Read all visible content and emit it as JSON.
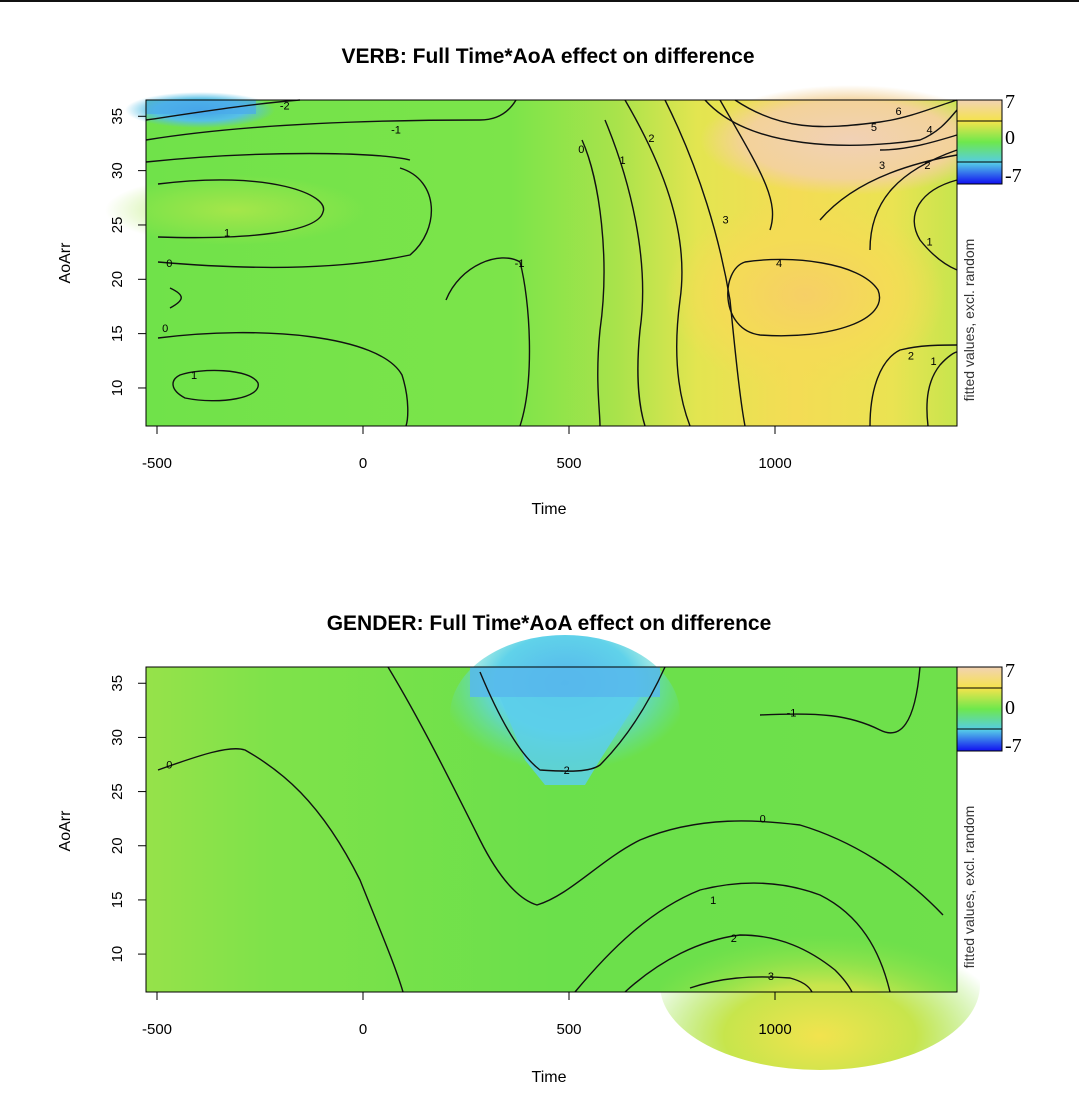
{
  "chart_data": [
    {
      "type": "heatmap",
      "title": "VERB: Full Time*AoA effect on difference",
      "xlabel": "Time",
      "ylabel": "AoArr",
      "zlabel": "fitted values, excl. random",
      "xlim": [
        -520,
        1440
      ],
      "ylim": [
        6.5,
        36.5
      ],
      "xticks": [
        -500,
        0,
        500,
        1000
      ],
      "yticks": [
        10,
        15,
        20,
        25,
        30,
        35
      ],
      "legend_ticks": [
        7,
        0,
        -7
      ],
      "zlim": [
        -7,
        7
      ],
      "grid": false,
      "legend_position": "right",
      "contour_labels": [
        {
          "text": "-2",
          "x": -190,
          "y": 36.0
        },
        {
          "text": "-1",
          "x": 80,
          "y": 33.8
        },
        {
          "text": "1",
          "x": -330,
          "y": 24.3
        },
        {
          "text": "0",
          "x": -470,
          "y": 21.5
        },
        {
          "text": "0",
          "x": -480,
          "y": 15.5
        },
        {
          "text": "1",
          "x": -410,
          "y": 11.2
        },
        {
          "text": "0",
          "x": 530,
          "y": 32.0
        },
        {
          "text": "1",
          "x": 630,
          "y": 31.0
        },
        {
          "text": "2",
          "x": 700,
          "y": 33.0
        },
        {
          "text": "-1",
          "x": 380,
          "y": 21.5
        },
        {
          "text": "3",
          "x": 880,
          "y": 25.5
        },
        {
          "text": "4",
          "x": 1010,
          "y": 21.5
        },
        {
          "text": "6",
          "x": 1300,
          "y": 35.5
        },
        {
          "text": "5",
          "x": 1240,
          "y": 34.0
        },
        {
          "text": "4",
          "x": 1375,
          "y": 33.8
        },
        {
          "text": "3",
          "x": 1260,
          "y": 30.5
        },
        {
          "text": "2",
          "x": 1370,
          "y": 30.5
        },
        {
          "text": "1",
          "x": 1375,
          "y": 23.5
        },
        {
          "text": "2",
          "x": 1330,
          "y": 13.0
        },
        {
          "text": "1",
          "x": 1385,
          "y": 12.5
        }
      ]
    },
    {
      "type": "heatmap",
      "title": "GENDER: Full Time*AoA effect on difference",
      "xlabel": "Time",
      "ylabel": "AoArr",
      "zlabel": "fitted values, excl. random",
      "xlim": [
        -520,
        1440
      ],
      "ylim": [
        6.5,
        36.5
      ],
      "xticks": [
        -500,
        0,
        500,
        1000
      ],
      "yticks": [
        10,
        15,
        20,
        25,
        30,
        35
      ],
      "legend_ticks": [
        7,
        0,
        -7
      ],
      "zlim": [
        -7,
        7
      ],
      "grid": false,
      "legend_position": "right",
      "contour_labels": [
        {
          "text": "0",
          "x": -470,
          "y": 27.5
        },
        {
          "text": "-2",
          "x": 490,
          "y": 27.0
        },
        {
          "text": "-1",
          "x": 1040,
          "y": 32.3
        },
        {
          "text": "0",
          "x": 970,
          "y": 22.5
        },
        {
          "text": "1",
          "x": 850,
          "y": 15.0
        },
        {
          "text": "2",
          "x": 900,
          "y": 11.5
        },
        {
          "text": "3",
          "x": 990,
          "y": 8.0
        }
      ]
    }
  ]
}
